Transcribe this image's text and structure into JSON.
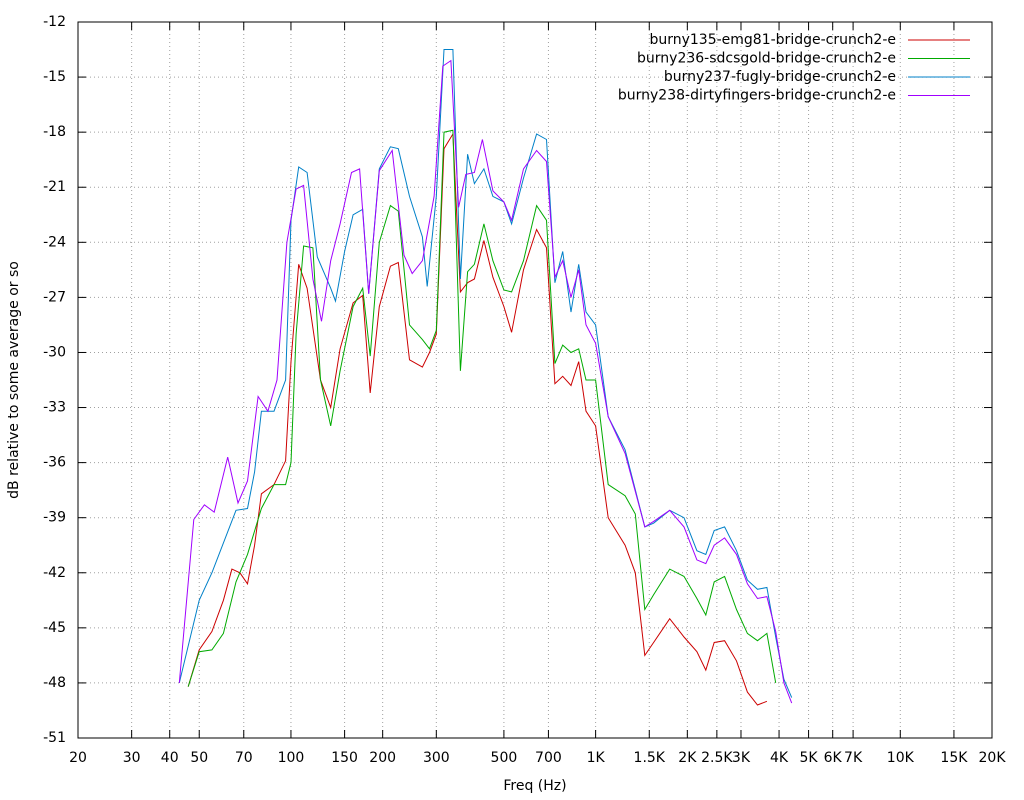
{
  "chart_data": {
    "type": "line",
    "xlabel": "Freq (Hz)",
    "ylabel": "dB relative to some average or so",
    "xscale": "log",
    "xlim": [
      20,
      20000
    ],
    "ylim": [
      -51,
      -12
    ],
    "grid": true,
    "legend": "top-right",
    "xticks": [
      20,
      30,
      40,
      50,
      70,
      100,
      150,
      200,
      300,
      500,
      700,
      {
        "value": 1000,
        "label": "1K"
      },
      {
        "value": 1500,
        "label": "1.5K"
      },
      {
        "value": 2000,
        "label": "2K"
      },
      {
        "value": 2500,
        "label": "2.5K"
      },
      {
        "value": 3000,
        "label": "3K"
      },
      {
        "value": 4000,
        "label": "4K"
      },
      {
        "value": 5000,
        "label": "5K"
      },
      {
        "value": 6000,
        "label": "6K"
      },
      {
        "value": 7000,
        "label": "7K"
      },
      {
        "value": 10000,
        "label": "10K"
      },
      {
        "value": 15000,
        "label": "15K"
      },
      {
        "value": 20000,
        "label": "20K"
      }
    ],
    "yticks": [
      -12,
      -15,
      -18,
      -21,
      -24,
      -27,
      -30,
      -33,
      -36,
      -39,
      -42,
      -45,
      -48,
      -51
    ],
    "series": [
      {
        "name": "burny135-emg81-bridge-crunch2-e",
        "color": "#cc0000",
        "x": [
          46,
          50,
          55,
          60,
          64,
          68,
          72,
          76,
          80,
          88,
          96,
          100,
          106,
          113,
          125,
          135,
          145,
          160,
          172,
          182,
          195,
          212,
          225,
          245,
          270,
          285,
          300,
          318,
          340,
          360,
          380,
          400,
          430,
          460,
          500,
          530,
          580,
          640,
          690,
          735,
          780,
          830,
          880,
          930,
          1000,
          1100,
          1250,
          1350,
          1450,
          1550,
          1750,
          1950,
          2150,
          2300,
          2450,
          2650,
          2900,
          3150,
          3400,
          3650
        ],
        "values": [
          -48.2,
          -46.2,
          -45.2,
          -43.5,
          -41.8,
          -42,
          -42.6,
          -40.5,
          -37.7,
          -37.2,
          -35.9,
          -30.5,
          -25.2,
          -26.5,
          -31.5,
          -33,
          -29.8,
          -27.3,
          -26.9,
          -32.2,
          -27.5,
          -25.3,
          -25.1,
          -30.4,
          -30.8,
          -30,
          -29,
          -18.9,
          -18.1,
          -26.7,
          -26.2,
          -26,
          -23.9,
          -25.9,
          -27.5,
          -28.9,
          -25.5,
          -23.3,
          -24.3,
          -31.7,
          -31.3,
          -31.8,
          -30.5,
          -33.2,
          -34,
          -39,
          -40.5,
          -42,
          -46.5,
          -45.8,
          -44.5,
          -45.5,
          -46.3,
          -47.3,
          -45.8,
          -45.7,
          -46.8,
          -48.5,
          -49.2,
          -49
        ]
      },
      {
        "name": "burny236-sdcsgold-bridge-crunch2-e",
        "color": "#00aa00",
        "x": [
          46,
          50,
          55,
          60,
          66,
          72,
          80,
          88,
          96,
          100,
          104,
          110,
          118,
          125,
          135,
          145,
          160,
          172,
          182,
          195,
          212,
          225,
          245,
          270,
          285,
          300,
          318,
          340,
          360,
          380,
          400,
          430,
          460,
          500,
          530,
          580,
          640,
          690,
          735,
          780,
          830,
          880,
          930,
          1000,
          1100,
          1250,
          1350,
          1450,
          1550,
          1750,
          1950,
          2150,
          2300,
          2450,
          2650,
          2900,
          3150,
          3400,
          3650,
          3900
        ],
        "values": [
          -48.2,
          -46.3,
          -46.2,
          -45.3,
          -42.5,
          -41,
          -38.5,
          -37.2,
          -37.2,
          -36,
          -29,
          -24.2,
          -24.3,
          -31.5,
          -34,
          -31,
          -27.5,
          -26.5,
          -30.2,
          -24,
          -22,
          -22.3,
          -28.5,
          -29.3,
          -29.8,
          -28.8,
          -18,
          -17.9,
          -31,
          -25.6,
          -25.2,
          -23,
          -25,
          -26.6,
          -26.7,
          -25,
          -22,
          -22.8,
          -30.6,
          -29.6,
          -30,
          -29.8,
          -31.5,
          -31.5,
          -37.2,
          -37.8,
          -38.8,
          -44,
          -43.2,
          -41.8,
          -42.2,
          -43.4,
          -44.3,
          -42.5,
          -42.2,
          -44,
          -45.3,
          -45.7,
          -45.3,
          -48
        ]
      },
      {
        "name": "burny237-fugly-bridge-crunch2-e",
        "color": "#0080c8",
        "x": [
          43,
          50,
          55,
          66,
          72,
          76,
          80,
          88,
          96,
          100,
          106,
          113,
          122,
          135,
          140,
          150,
          160,
          172,
          180,
          195,
          212,
          225,
          245,
          270,
          280,
          300,
          318,
          340,
          360,
          380,
          400,
          430,
          460,
          500,
          530,
          580,
          640,
          690,
          735,
          780,
          830,
          880,
          930,
          1000,
          1100,
          1250,
          1450,
          1550,
          1750,
          1950,
          2150,
          2300,
          2450,
          2650,
          2900,
          3150,
          3400,
          3650,
          3900,
          4150,
          4400
        ],
        "values": [
          -48,
          -43.5,
          -42,
          -38.6,
          -38.5,
          -36.5,
          -33.2,
          -33.2,
          -31.5,
          -22.8,
          -19.9,
          -20.2,
          -24.8,
          -26.5,
          -27.2,
          -24.5,
          -22.5,
          -22.2,
          -26.8,
          -20,
          -18.8,
          -18.9,
          -21.5,
          -23.7,
          -26.4,
          -21.5,
          -13.5,
          -13.5,
          -26,
          -19.2,
          -20.8,
          -20,
          -21.5,
          -21.8,
          -23,
          -20.5,
          -18.1,
          -18.4,
          -26.2,
          -24.5,
          -27.8,
          -25.2,
          -27.8,
          -28.5,
          -33.5,
          -35.3,
          -39.5,
          -39.3,
          -38.6,
          -39,
          -40.8,
          -41,
          -39.7,
          -39.5,
          -40.8,
          -42.4,
          -42.9,
          -42.8,
          -45.5,
          -47.8,
          -48.8
        ]
      },
      {
        "name": "burny238-dirtyfingers-bridge-crunch2-e",
        "color": "#a000ff",
        "x": [
          43,
          48,
          52,
          56,
          62,
          67,
          72,
          78,
          84,
          90,
          97,
          104,
          110,
          118,
          126,
          135,
          145,
          158,
          168,
          180,
          195,
          215,
          235,
          250,
          270,
          295,
          315,
          335,
          355,
          375,
          400,
          425,
          460,
          500,
          530,
          580,
          640,
          690,
          735,
          780,
          830,
          880,
          930,
          1000,
          1100,
          1250,
          1450,
          1550,
          1750,
          1950,
          2150,
          2300,
          2450,
          2650,
          2900,
          3150,
          3400,
          3650,
          3900,
          4150,
          4400
        ],
        "values": [
          -48,
          -39.1,
          -38.3,
          -38.7,
          -35.7,
          -38.2,
          -37,
          -32.4,
          -33.2,
          -31.5,
          -24,
          -21.1,
          -20.9,
          -26,
          -28.3,
          -25,
          -23,
          -20.2,
          -20,
          -26.8,
          -20.1,
          -19,
          -24.7,
          -25.7,
          -25,
          -21.5,
          -14.4,
          -14.1,
          -22.1,
          -20.3,
          -20.2,
          -18.4,
          -21.2,
          -21.8,
          -22.8,
          -20,
          -19,
          -19.6,
          -25.9,
          -25,
          -27,
          -25.5,
          -28.5,
          -29.5,
          -33.5,
          -35.5,
          -39.5,
          -39.2,
          -38.6,
          -39.5,
          -41.3,
          -41.5,
          -40.5,
          -40.1,
          -41,
          -42.6,
          -43.4,
          -43.3,
          -45.2,
          -48,
          -49.1
        ]
      }
    ]
  }
}
